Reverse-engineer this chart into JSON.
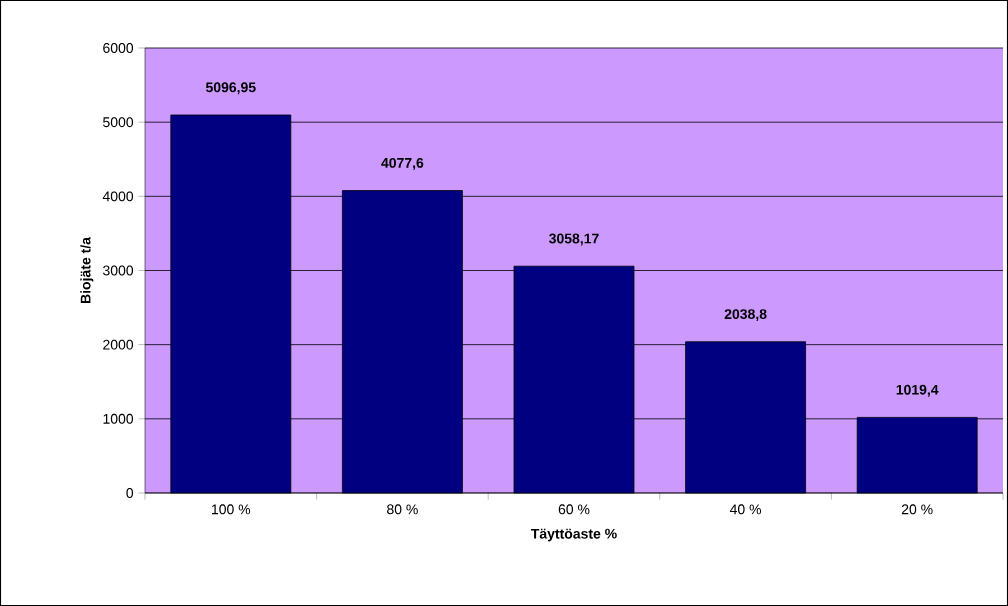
{
  "chart_data": {
    "type": "bar",
    "xlabel": "Täyttöaste %",
    "ylabel": "Biojäte t/a",
    "categories": [
      "100 %",
      "80 %",
      "60 %",
      "40 %",
      "20 %"
    ],
    "values": [
      5096.95,
      4077.6,
      3058.17,
      2038.8,
      1019.4
    ],
    "value_labels": [
      "5096,95",
      "4077,6",
      "3058,17",
      "2038,8",
      "1019,4"
    ],
    "color": "#000080",
    "ylim": [
      0,
      6000
    ],
    "yticks": [
      0,
      1000,
      2000,
      3000,
      4000,
      5000,
      6000
    ],
    "grid": "y"
  }
}
